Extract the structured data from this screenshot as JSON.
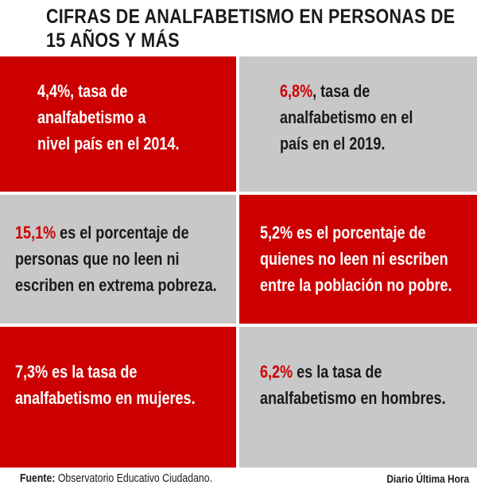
{
  "colors": {
    "red": "#cc0000",
    "gray": "#c8c8c8"
  },
  "title": {
    "line1": "CIFRAS DE ANALFABETISMO EN PERSONAS DE",
    "line2": "15 AÑOS Y MÁS"
  },
  "cells": [
    {
      "style": "red",
      "percent": "4,4%",
      "line1_rest": ", tasa de",
      "line2": "analfabetismo a",
      "line3": "nivel país en el 2014."
    },
    {
      "style": "gray",
      "percent": "6,8%",
      "line1_rest": ", tasa de",
      "line2": "analfabetismo en el",
      "line3": "país en el 2019."
    },
    {
      "style": "gray",
      "percent": "15,1%",
      "line1_rest": " es el porcentaje de",
      "line2": "personas que no leen ni",
      "line3": "escriben en extrema pobreza."
    },
    {
      "style": "red",
      "percent": "5,2%",
      "line1_rest": " es el porcentaje de",
      "line2": "quienes no leen ni escriben",
      "line3": "entre la población no pobre."
    },
    {
      "style": "red",
      "percent": "7,3%",
      "line1_rest": " es la tasa de",
      "line2": "analfabetismo en mujeres."
    },
    {
      "style": "gray",
      "percent": "6,2%",
      "line1_rest": " es la tasa de",
      "line2": "analfabetismo en hombres."
    }
  ],
  "footer": {
    "source_label": "Fuente:",
    "source_text": " Observatorio Educativo Ciudadano.",
    "brand": "Diario Última Hora"
  }
}
